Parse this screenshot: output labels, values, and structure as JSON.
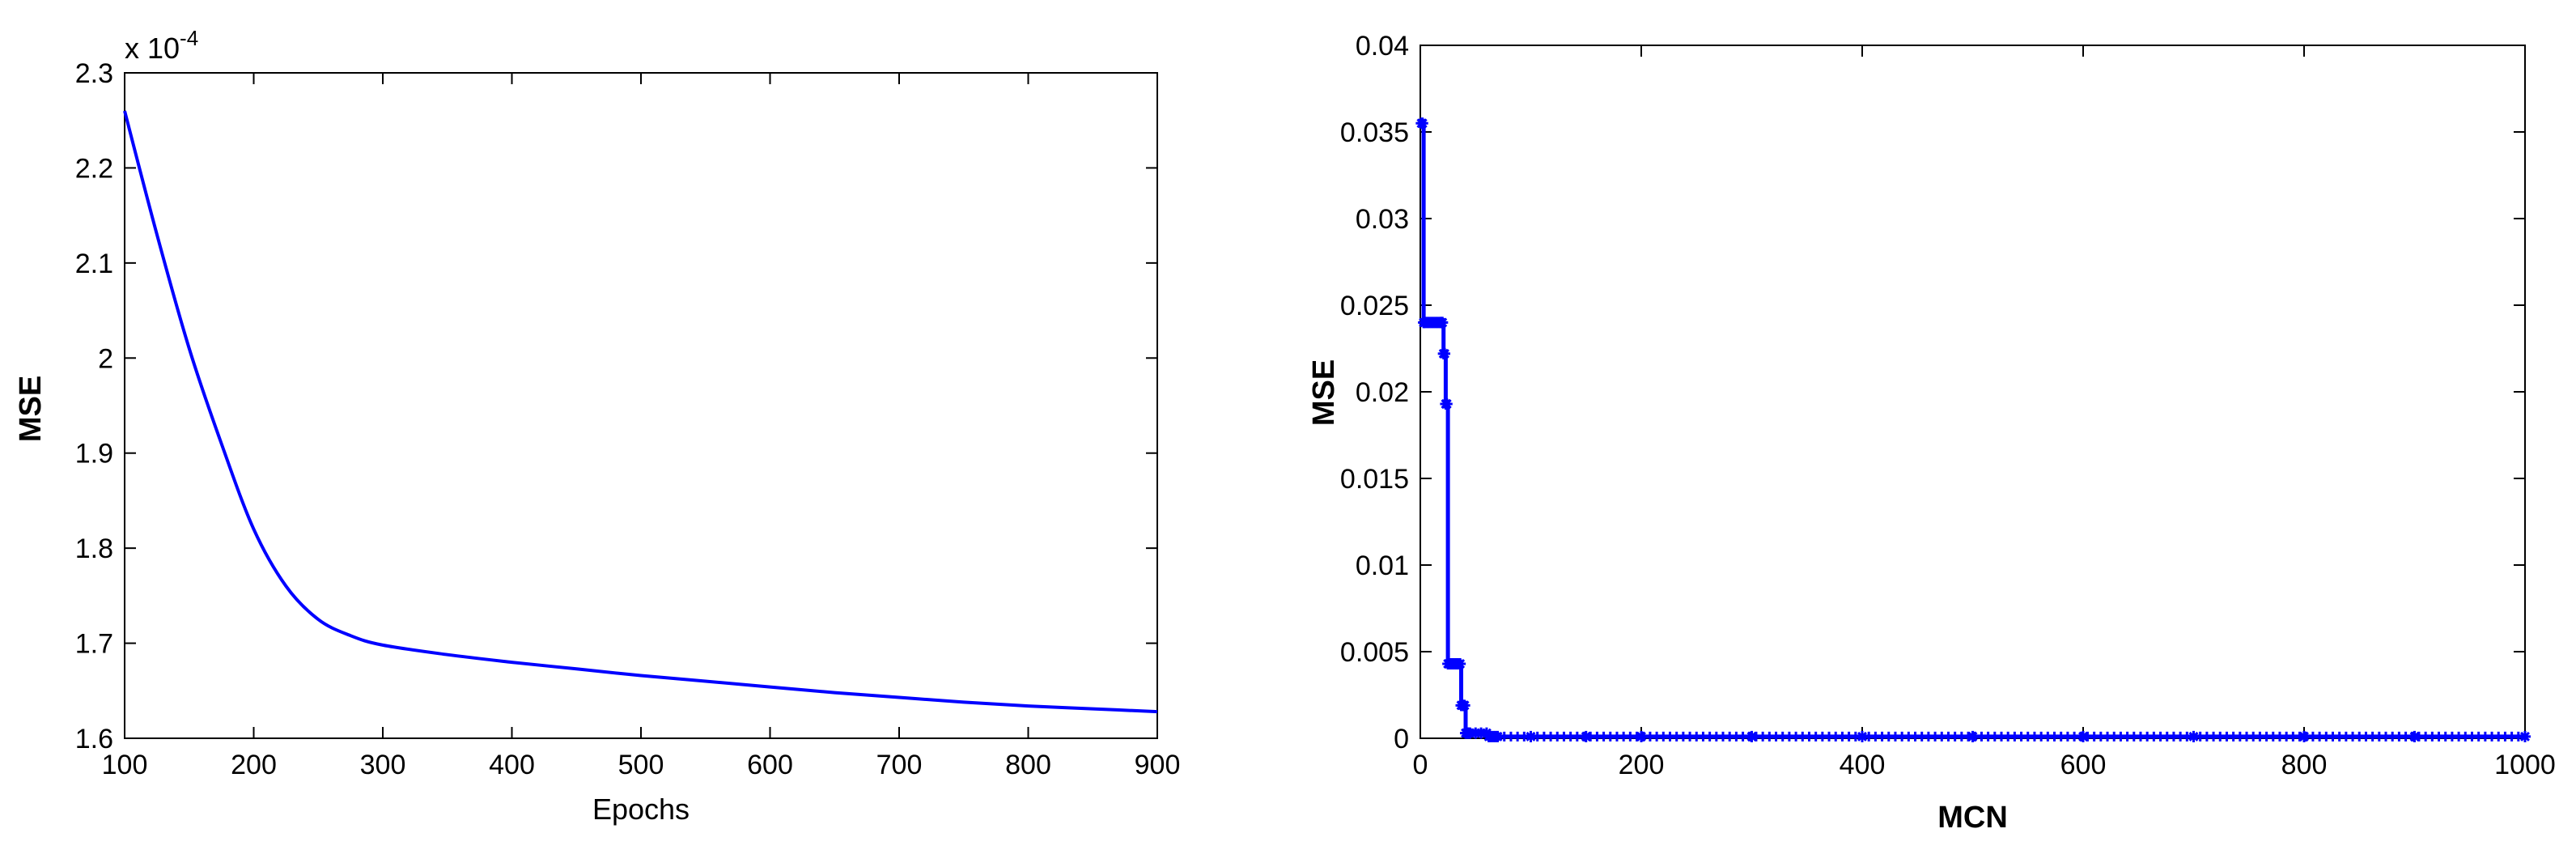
{
  "chart_data": [
    {
      "type": "line",
      "xlabel": "Epochs",
      "ylabel": "MSE",
      "exponent_label": "x 10",
      "exponent_power": "-4",
      "xlim": [
        100,
        900
      ],
      "ylim": [
        1.6,
        2.3
      ],
      "xticks": [
        100,
        200,
        300,
        400,
        500,
        600,
        700,
        800,
        900
      ],
      "yticks": [
        1.6,
        1.7,
        1.8,
        1.9,
        2.0,
        2.1,
        2.2,
        2.3
      ],
      "xtick_labels": [
        "100",
        "200",
        "300",
        "400",
        "500",
        "600",
        "700",
        "800",
        "900"
      ],
      "ytick_labels": [
        "1.6",
        "1.7",
        "1.8",
        "1.9",
        "2",
        "2.1",
        "2.2",
        "2.3"
      ],
      "grid": false,
      "color": "#0000ff",
      "series": [
        {
          "x": [
            100,
            125,
            150,
            175,
            200,
            225,
            250,
            275,
            300,
            350,
            400,
            450,
            500,
            550,
            600,
            650,
            700,
            750,
            800,
            850,
            900
          ],
          "y": [
            2.26,
            2.13,
            2.01,
            1.91,
            1.82,
            1.76,
            1.725,
            1.708,
            1.698,
            1.688,
            1.68,
            1.673,
            1.666,
            1.66,
            1.654,
            1.648,
            1.643,
            1.638,
            1.634,
            1.631,
            1.628
          ]
        }
      ]
    },
    {
      "type": "line",
      "xlabel": "MCN",
      "ylabel": "MSE",
      "xlim": [
        0,
        1000
      ],
      "ylim": [
        0,
        0.04
      ],
      "xticks": [
        0,
        200,
        400,
        600,
        800,
        1000
      ],
      "yticks": [
        0,
        0.005,
        0.01,
        0.015,
        0.02,
        0.025,
        0.03,
        0.035,
        0.04
      ],
      "xtick_labels": [
        "0",
        "200",
        "400",
        "600",
        "800",
        "1000"
      ],
      "ytick_labels": [
        "0",
        "0.005",
        "0.01",
        "0.015",
        "0.02",
        "0.025",
        "0.03",
        "0.035",
        "0.04"
      ],
      "grid": false,
      "color": "#0000ff",
      "marker": "star",
      "series": [
        {
          "x": [
            1,
            2,
            3,
            4,
            6,
            8,
            10,
            12,
            14,
            16,
            18,
            19,
            20,
            21,
            22,
            23,
            24,
            25,
            26,
            27,
            28,
            29,
            30,
            32,
            34,
            36,
            37,
            38,
            39,
            40,
            41,
            42,
            43,
            44,
            45,
            50,
            55,
            60,
            62,
            64,
            66,
            68,
            70,
            100,
            150,
            200,
            300,
            400,
            500,
            600,
            700,
            800,
            900,
            1000
          ],
          "y": [
            0.0355,
            0.0355,
            0.024,
            0.024,
            0.024,
            0.024,
            0.024,
            0.024,
            0.024,
            0.024,
            0.024,
            0.024,
            0.024,
            0.0222,
            0.0222,
            0.0193,
            0.0193,
            0.0043,
            0.0043,
            0.0043,
            0.0043,
            0.0043,
            0.0043,
            0.0043,
            0.0043,
            0.0043,
            0.0019,
            0.0019,
            0.0019,
            0.0019,
            0.0003,
            0.0003,
            0.0003,
            0.0003,
            0.0003,
            0.0003,
            0.0003,
            0.0003,
            0.0001,
            0.0001,
            0.0001,
            0.0001,
            0.0001,
            0.0001,
            0.0001,
            0.0001,
            0.0001,
            0.0001,
            0.0001,
            0.0001,
            0.0001,
            0.0001,
            0.0001,
            0.0001
          ]
        }
      ]
    }
  ]
}
